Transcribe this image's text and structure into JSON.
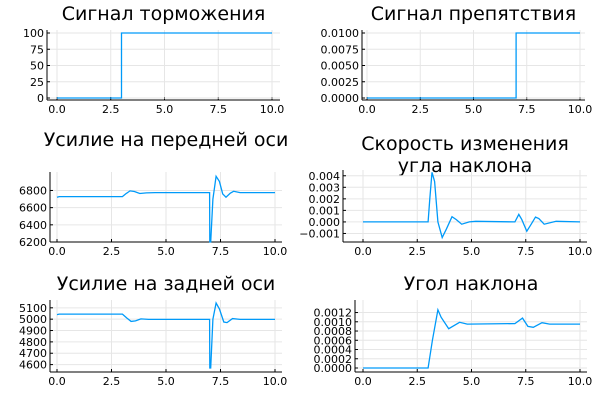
{
  "chart_data": [
    {
      "type": "line",
      "title": "Сигнал торможения",
      "xlim": [
        0,
        10
      ],
      "ylim": [
        0,
        100
      ],
      "xticks": [
        "0.0",
        "2.5",
        "5.0",
        "7.5",
        "10.0"
      ],
      "yticks": [
        "0",
        "25",
        "50",
        "75",
        "100"
      ],
      "grid": true,
      "series": [
        {
          "color": "#009af9",
          "points": [
            [
              0,
              0
            ],
            [
              3,
              0
            ],
            [
              3,
              100
            ],
            [
              10,
              100
            ]
          ]
        }
      ]
    },
    {
      "type": "line",
      "title": "Сигнал препятствия",
      "xlim": [
        0,
        10
      ],
      "ylim": [
        0,
        0.01
      ],
      "xticks": [
        "0.0",
        "2.5",
        "5.0",
        "7.5",
        "10.0"
      ],
      "yticks": [
        "0.0000",
        "0.0025",
        "0.0050",
        "0.0075",
        "0.0100"
      ],
      "grid": true,
      "series": [
        {
          "color": "#009af9",
          "points": [
            [
              0,
              0
            ],
            [
              7,
              0
            ],
            [
              7,
              0.01
            ],
            [
              10,
              0.01
            ]
          ]
        }
      ]
    },
    {
      "type": "line",
      "title": "Усилие на передней оси",
      "xlim": [
        0,
        10
      ],
      "ylim": [
        6200,
        6980
      ],
      "xticks": [
        "0.0",
        "2.5",
        "5.0",
        "7.5",
        "10.0"
      ],
      "yticks": [
        "6200",
        "6400",
        "6600",
        "6800"
      ],
      "grid": true,
      "series": [
        {
          "color": "#009af9",
          "points": [
            [
              0,
              6720
            ],
            [
              0.1,
              6728
            ],
            [
              3,
              6728
            ],
            [
              3.15,
              6760
            ],
            [
              3.35,
              6795
            ],
            [
              3.55,
              6788
            ],
            [
              3.8,
              6765
            ],
            [
              4.1,
              6772
            ],
            [
              4.5,
              6775
            ],
            [
              7,
              6775
            ],
            [
              7.01,
              6200
            ],
            [
              7.05,
              6200
            ],
            [
              7.15,
              6700
            ],
            [
              7.3,
              6965
            ],
            [
              7.45,
              6905
            ],
            [
              7.6,
              6760
            ],
            [
              7.75,
              6722
            ],
            [
              7.95,
              6768
            ],
            [
              8.1,
              6790
            ],
            [
              8.4,
              6775
            ],
            [
              10,
              6775
            ]
          ]
        }
      ]
    },
    {
      "type": "line",
      "title": "Скорость изменения угла наклона",
      "xlim": [
        0,
        10
      ],
      "ylim": [
        -0.00135,
        0.0045
      ],
      "xticks": [
        "0.0",
        "2.5",
        "5.0",
        "7.5",
        "10.0"
      ],
      "yticks": [
        "−0.001",
        "0.000",
        "0.001",
        "0.002",
        "0.003",
        "0.004"
      ],
      "grid": true,
      "series": [
        {
          "color": "#009af9",
          "points": [
            [
              0,
              0
            ],
            [
              3,
              0
            ],
            [
              3.08,
              0.002
            ],
            [
              3.18,
              0.0043
            ],
            [
              3.3,
              0.0035
            ],
            [
              3.45,
              0
            ],
            [
              3.65,
              -0.00135
            ],
            [
              3.85,
              -0.0006
            ],
            [
              4.1,
              0.00045
            ],
            [
              4.3,
              0.0002
            ],
            [
              4.55,
              -0.0002
            ],
            [
              4.9,
              0
            ],
            [
              5.2,
              5e-05
            ],
            [
              7,
              0
            ],
            [
              7.18,
              0.00065
            ],
            [
              7.32,
              0.0002
            ],
            [
              7.55,
              -0.0008
            ],
            [
              7.75,
              -0.0002
            ],
            [
              7.95,
              0.00042
            ],
            [
              8.1,
              0.0003
            ],
            [
              8.35,
              -0.0002
            ],
            [
              8.9,
              5e-05
            ],
            [
              10,
              0
            ]
          ]
        }
      ]
    },
    {
      "type": "line",
      "title": "Усилие на задней оси",
      "xlim": [
        0,
        10
      ],
      "ylim": [
        4570,
        5160
      ],
      "xticks": [
        "0.0",
        "2.5",
        "5.0",
        "7.5",
        "10.0"
      ],
      "yticks": [
        "4600",
        "4700",
        "4800",
        "4900",
        "5000",
        "5100"
      ],
      "grid": true,
      "series": [
        {
          "color": "#009af9",
          "points": [
            [
              0,
              5040
            ],
            [
              0.1,
              5045
            ],
            [
              3,
              5045
            ],
            [
              3.2,
              5010
            ],
            [
              3.4,
              4980
            ],
            [
              3.6,
              4985
            ],
            [
              3.85,
              5002
            ],
            [
              4.2,
              4998
            ],
            [
              7,
              4998
            ],
            [
              7.01,
              4570
            ],
            [
              7.05,
              4570
            ],
            [
              7.15,
              5000
            ],
            [
              7.3,
              5142
            ],
            [
              7.45,
              5090
            ],
            [
              7.65,
              4975
            ],
            [
              7.8,
              4970
            ],
            [
              8.05,
              5005
            ],
            [
              8.4,
              4998
            ],
            [
              10,
              4998
            ]
          ]
        }
      ]
    },
    {
      "type": "line",
      "title": "Угол наклона",
      "xlim": [
        0,
        10
      ],
      "ylim": [
        0,
        0.00132
      ],
      "xticks": [
        "0.0",
        "2.5",
        "5.0",
        "7.5",
        "10.0"
      ],
      "yticks": [
        "0.0000",
        "0.0002",
        "0.0004",
        "0.0006",
        "0.0008",
        "0.0010",
        "0.0012"
      ],
      "grid": true,
      "series": [
        {
          "color": "#009af9",
          "points": [
            [
              0,
              0
            ],
            [
              3,
              0
            ],
            [
              3.2,
              0.0006
            ],
            [
              3.45,
              0.00126
            ],
            [
              3.6,
              0.0011
            ],
            [
              3.95,
              0.00085
            ],
            [
              4.45,
              0.00099
            ],
            [
              4.8,
              0.00095
            ],
            [
              7,
              0.00096
            ],
            [
              7.35,
              0.00108
            ],
            [
              7.6,
              0.0009
            ],
            [
              7.85,
              0.00088
            ],
            [
              8.25,
              0.00098
            ],
            [
              8.6,
              0.00095
            ],
            [
              10,
              0.00095
            ]
          ]
        }
      ]
    }
  ]
}
